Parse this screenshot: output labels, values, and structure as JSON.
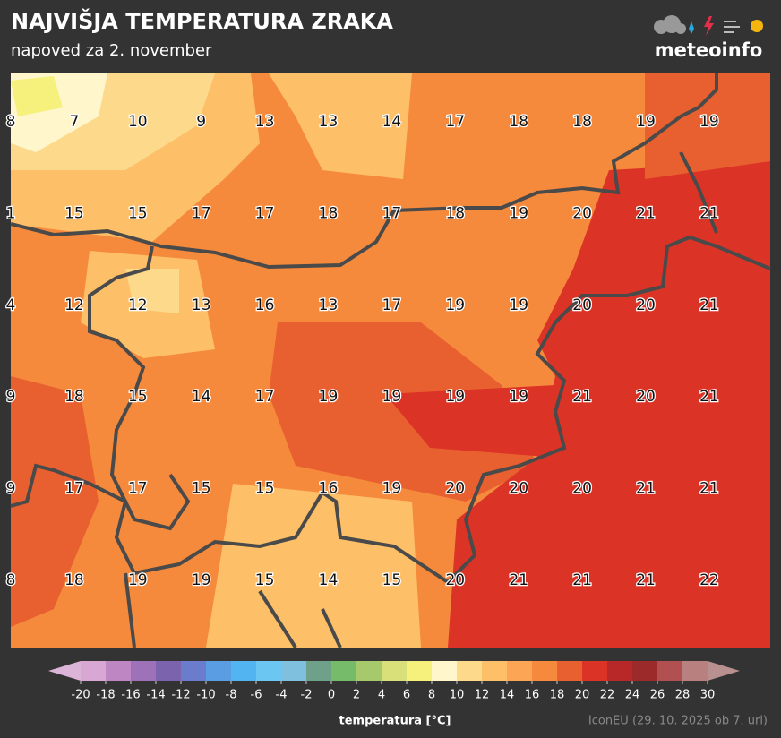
{
  "header": {
    "title": "NAJVIŠJA TEMPERATURA ZRAKA",
    "subtitle": "napoved za 2. november",
    "logo": "meteoinfo"
  },
  "map": {
    "rows": [
      [
        8,
        7,
        10,
        9,
        13,
        13,
        14,
        17,
        18,
        18,
        19,
        19
      ],
      [
        1,
        15,
        15,
        17,
        17,
        18,
        17,
        18,
        19,
        20,
        21,
        21
      ],
      [
        4,
        12,
        12,
        13,
        16,
        13,
        17,
        19,
        19,
        20,
        20,
        21
      ],
      [
        9,
        18,
        15,
        14,
        17,
        19,
        19,
        19,
        19,
        21,
        20,
        21
      ],
      [
        9,
        17,
        17,
        15,
        15,
        16,
        19,
        20,
        20,
        20,
        21,
        21
      ],
      [
        8,
        18,
        19,
        19,
        15,
        14,
        15,
        20,
        21,
        21,
        21,
        22
      ]
    ]
  },
  "colorbar": {
    "ticks": [
      -20,
      -18,
      -16,
      -14,
      -12,
      -10,
      -8,
      -6,
      -4,
      -2,
      0,
      2,
      4,
      6,
      8,
      10,
      12,
      14,
      16,
      18,
      20,
      22,
      24,
      26,
      28,
      30
    ],
    "colors": [
      "#d9a7d3",
      "#be86c2",
      "#9e72b8",
      "#7b63ad",
      "#6a7ccb",
      "#5a9de3",
      "#52b4f0",
      "#6cc6f2",
      "#7ec0de",
      "#6fa08a",
      "#76bb6a",
      "#a6c96c",
      "#d9e07a",
      "#f6f07c",
      "#fff6cc",
      "#fdd98c",
      "#fdc068",
      "#fca555",
      "#f68a3c",
      "#e8602f",
      "#dc3327",
      "#b82828",
      "#9c2a2a",
      "#b05050",
      "#b98080"
    ],
    "under_color": "#dcb4d8",
    "over_color": "#b89090",
    "label": "temperatura [°C]"
  },
  "footer": {
    "source": "IconEU (29. 10. 2025 ob 7. uri)"
  }
}
